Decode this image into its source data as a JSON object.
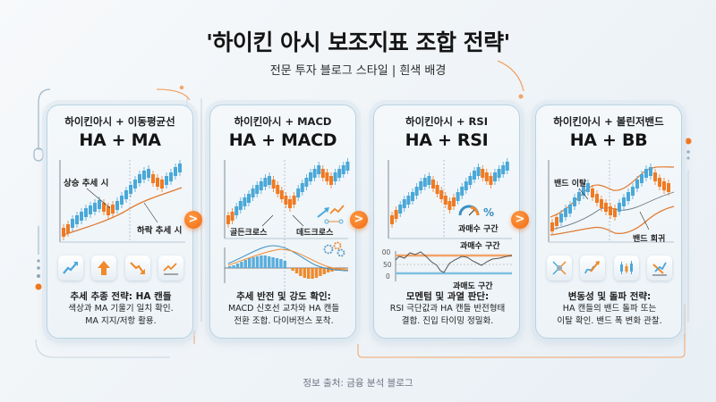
{
  "header": {
    "title": "'하이킨 아시 보조지표 조합 전략'",
    "subtitle": "전문 투자 블로그 스타일 | 흰색 배경"
  },
  "colors": {
    "bullish": "#4aa8d8",
    "bearish": "#f07a22",
    "accent": "#f26a12",
    "card_border": "#b9d3e2",
    "text": "#1a1a1a"
  },
  "cards": [
    {
      "subtitle": "하이킨아시 + 이동평균선",
      "title": "HA + MA",
      "labels": [
        "상승 추세 시",
        "하락 추세 시"
      ],
      "icons": [
        "trend-up-icon",
        "arrow-up-icon",
        "trend-down-icon",
        "trend-line-icon"
      ],
      "desc_bold": "추세 추종 전략: HA 캔들",
      "desc_lines": [
        "색상과 MA 기울기 일치 확인.",
        "MA 지지/저항 활용."
      ]
    },
    {
      "subtitle": "하이킨아시 + MACD",
      "title": "HA + MACD",
      "labels": [
        "골든크로스",
        "데드크로스"
      ],
      "icons": [
        "gears-icon",
        "signal-arrows-icon"
      ],
      "desc_bold": "추세 반전 및 강도 확인:",
      "desc_lines": [
        "MACD 신호선 교차와 HA 캔들",
        "전환 조합. 다이버전스 포착."
      ]
    },
    {
      "subtitle": "하이킨아시 + RSI",
      "title": "HA + RSI",
      "labels": [
        "과매수 구간",
        "과매수 구간",
        "과매도 구간"
      ],
      "rsi_ticks": [
        "100",
        "50",
        "0"
      ],
      "icons": [
        "gauge-icon",
        "percent-icon"
      ],
      "desc_bold": "모멘텀 및 과열 판단:",
      "desc_lines": [
        "RSI 극단값과 HA 캔들 반전형태",
        "결합. 진입 타이밍 정밀화."
      ]
    },
    {
      "subtitle": "하이킨아시 + 볼린저밴드",
      "title": "HA + BB",
      "labels": [
        "밴드 이탈",
        "밴드 회귀"
      ],
      "icons": [
        "expand-icon",
        "breakout-icon",
        "candles-icon",
        "band-squeeze-icon"
      ],
      "desc_bold": "변동성 및 돌파 전략:",
      "desc_lines": [
        "HA 캔들의 밴드 돌파 또는",
        "이탈 확인. 밴드 폭 변화 관찰."
      ]
    }
  ],
  "nav_arrows": [
    ">",
    ">",
    ">"
  ],
  "footer": {
    "source": "정보 출처: 금융 분석 블로그"
  }
}
